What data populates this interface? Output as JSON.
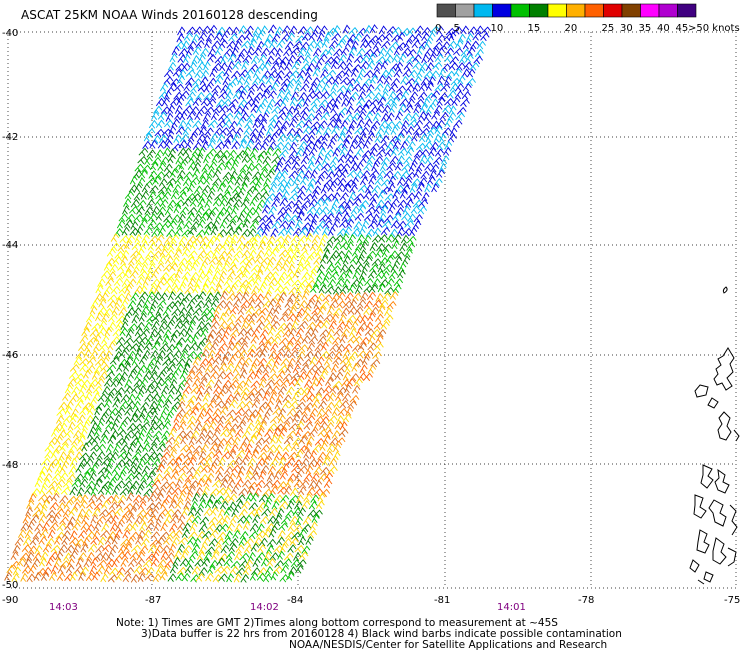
{
  "title": "ASCAT 25KM NOAA Winds 20160128 descending",
  "legend": {
    "colors": [
      "#505050",
      "#a0a0a0",
      "#00b8f0",
      "#0000e0",
      "#00c000",
      "#008000",
      "#ffff00",
      "#ffb000",
      "#ff6000",
      "#e00000",
      "#804000",
      "#ff00ff",
      "#b000d0",
      "#400080"
    ],
    "labels": [
      "0",
      "5",
      "10",
      "15",
      "20",
      "25",
      "30",
      "35",
      "40",
      "45",
      ">50 knots"
    ],
    "label_positions": [
      0,
      1,
      3,
      5,
      7,
      9,
      10,
      11,
      12,
      13,
      14
    ]
  },
  "axes": {
    "lon_labels": [
      "-90",
      "-87",
      "-84",
      "-81",
      "-78",
      "-75"
    ],
    "lat_labels": [
      "-40",
      "-42",
      "-44",
      "-46",
      "-48",
      "-50"
    ],
    "time_labels": [
      "14:03",
      "14:02",
      "14:01"
    ],
    "time_label_color": "#800080"
  },
  "barb_colors": {
    "north": [
      "#00b8f0",
      "#0000e0",
      "#00b8f0",
      "#0000e0",
      "#0000e0"
    ],
    "middle": [
      "#00c000",
      "#008000",
      "#00c000",
      "#ffff00",
      "#ffd700"
    ],
    "south": [
      "#ffb000",
      "#ff8000",
      "#ff6000",
      "#d2691e",
      "#ffd700",
      "#e07020"
    ]
  },
  "notes": {
    "line1": "Note: 1) Times are GMT 2)Times along bottom correspond to measurement at ~45S",
    "line2": "3)Data buffer is 22 hrs from 20160128 4) Black wind barbs indicate possible contamination",
    "line3": "NOAA/NESDIS/Center for Satellite Applications and Research"
  }
}
